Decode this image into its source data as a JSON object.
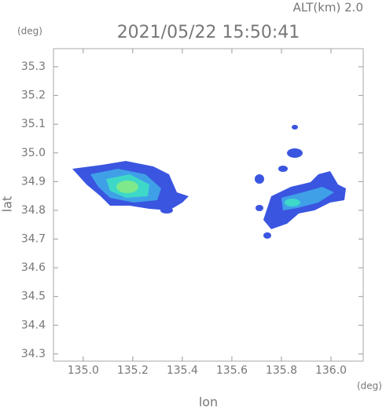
{
  "chart_data": {
    "type": "radar-map",
    "altitude_label": "ALT(km) 2.0",
    "title": "2021/05/22 15:50:41",
    "y_unit": "(deg)",
    "x_unit": "(deg)",
    "ylabel": "lat",
    "xlabel": "lon",
    "xlim": [
      134.88,
      136.13
    ],
    "ylim": [
      34.275,
      35.363
    ],
    "xticks": [
      {
        "value": 135,
        "label": "135.0"
      },
      135.2,
      135.4,
      135.6,
      135.8,
      {
        "value": 136,
        "label": "136.0"
      }
    ],
    "yticks": [
      34.3,
      34.4,
      34.5,
      34.6,
      34.7,
      34.8,
      34.9,
      {
        "value": 35,
        "label": "35.0"
      },
      35.1,
      35.2,
      35.3
    ]
  }
}
